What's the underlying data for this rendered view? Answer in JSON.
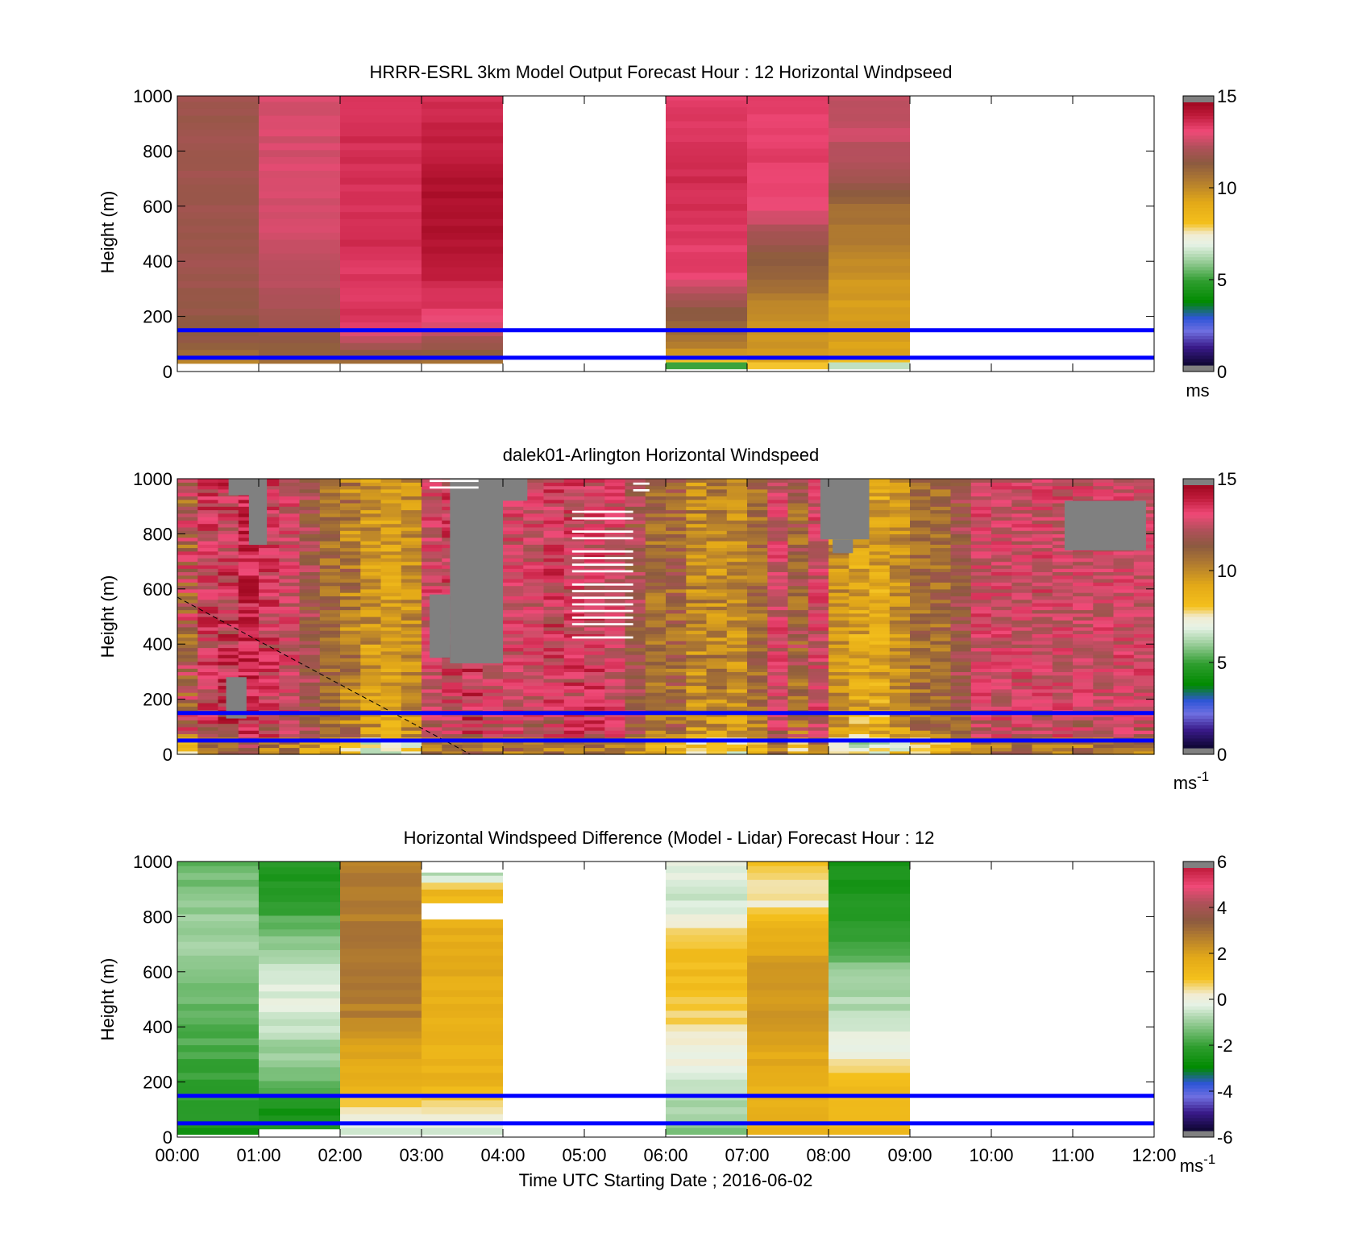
{
  "chart_data": [
    {
      "type": "heatmap",
      "title": "HRRR-ESRL 3km Model Output   Forecast Hour : 12 Horizontal Windpseed",
      "ylabel": "Height (m)",
      "xlabel": "",
      "x_range_hours": [
        0,
        12
      ],
      "ylim": [
        0,
        1000
      ],
      "yticks": [
        0,
        200,
        400,
        600,
        800,
        1000
      ],
      "colorbar": {
        "min": 0,
        "max": 15,
        "ticks": [
          0,
          5,
          10,
          15
        ],
        "unit": "ms",
        "unit_sup": "",
        "palette": "speed"
      },
      "blue_lines_m": [
        150,
        50
      ],
      "columns": [
        {
          "start": 0,
          "end": 1,
          "top": 1000,
          "bottom": 30,
          "profile": [
            [
              0,
              9.8
            ],
            [
              30,
              10.0
            ],
            [
              60,
              11.0
            ],
            [
              100,
              11.5
            ],
            [
              200,
              11.8
            ],
            [
              400,
              12.0
            ],
            [
              600,
              12.0
            ],
            [
              1000,
              12.0
            ]
          ]
        },
        {
          "start": 1,
          "end": 2,
          "top": 1000,
          "bottom": 30,
          "profile": [
            [
              0,
              9.8
            ],
            [
              30,
              10.5
            ],
            [
              60,
              11.2
            ],
            [
              150,
              11.8
            ],
            [
              250,
              12.3
            ],
            [
              400,
              12.7
            ],
            [
              600,
              13.0
            ],
            [
              1000,
              13.0
            ]
          ]
        },
        {
          "start": 2,
          "end": 3,
          "top": 1000,
          "bottom": 30,
          "profile": [
            [
              0,
              9.8
            ],
            [
              30,
              10.5
            ],
            [
              60,
              11.5
            ],
            [
              180,
              13.8
            ],
            [
              300,
              13.7
            ],
            [
              500,
              13.9
            ],
            [
              800,
              13.9
            ],
            [
              1000,
              13.9
            ]
          ]
        },
        {
          "start": 3,
          "end": 4,
          "top": 1000,
          "bottom": 30,
          "profile": [
            [
              0,
              9.8
            ],
            [
              30,
              10.5
            ],
            [
              60,
              11.2
            ],
            [
              200,
              13.5
            ],
            [
              300,
              14.0
            ],
            [
              500,
              14.7
            ],
            [
              700,
              14.6
            ],
            [
              900,
              14.0
            ],
            [
              1000,
              13.8
            ]
          ]
        },
        {
          "start": 6,
          "end": 7,
          "top": 1000,
          "bottom": 10,
          "profile": [
            [
              0,
              3.5
            ],
            [
              30,
              5.5
            ],
            [
              60,
              9.8
            ],
            [
              150,
              11.0
            ],
            [
              250,
              12.0
            ],
            [
              350,
              13.5
            ],
            [
              450,
              13.6
            ],
            [
              700,
              14.0
            ],
            [
              1000,
              13.5
            ]
          ]
        },
        {
          "start": 7,
          "end": 8,
          "top": 1000,
          "bottom": 10,
          "profile": [
            [
              0,
              6.0
            ],
            [
              30,
              8.5
            ],
            [
              60,
              9.8
            ],
            [
              200,
              10.0
            ],
            [
              300,
              10.8
            ],
            [
              450,
              11.8
            ],
            [
              600,
              13.3
            ],
            [
              800,
              13.6
            ],
            [
              1000,
              13.5
            ]
          ]
        },
        {
          "start": 8,
          "end": 9,
          "top": 1000,
          "bottom": 10,
          "profile": [
            [
              0,
              5.5
            ],
            [
              30,
              6.5
            ],
            [
              60,
              9.5
            ],
            [
              300,
              9.7
            ],
            [
              400,
              10.2
            ],
            [
              600,
              11.0
            ],
            [
              700,
              12.0
            ],
            [
              850,
              12.8
            ],
            [
              1000,
              12.7
            ]
          ]
        }
      ]
    },
    {
      "type": "heatmap",
      "title": "dalek01-Arlington  Horizontal Windspeed",
      "ylabel": "Height (m)",
      "xlabel": "",
      "x_range_hours": [
        0,
        12
      ],
      "ylim": [
        0,
        1000
      ],
      "yticks": [
        0,
        200,
        400,
        600,
        800,
        1000
      ],
      "colorbar": {
        "min": 0,
        "max": 15,
        "ticks": [
          0,
          5,
          10,
          15
        ],
        "unit": "ms",
        "unit_sup": "-1",
        "palette": "speed"
      },
      "blue_lines_m": [
        150,
        50
      ],
      "mixing_layer_line": {
        "from": [
          0,
          570
        ],
        "to": [
          3.6,
          0
        ]
      },
      "scans_per_hour": 4,
      "scan_tops_m": [
        1000,
        1000,
        1000,
        1000,
        1000,
        1000,
        1000,
        1000,
        1000,
        1000,
        1000,
        1000,
        1000,
        1000,
        1000,
        1000,
        1000,
        1000,
        1000,
        1000,
        1000,
        1000,
        1000,
        1000,
        1000,
        1000,
        1000,
        1000,
        1000,
        1000,
        1000,
        1000,
        1000,
        1000,
        1000,
        1000,
        1000,
        1000,
        1000,
        1000,
        1000,
        1000,
        1000,
        1000,
        1000,
        1000,
        1000,
        1000
      ],
      "scan_ranges_ms": [
        [
          10,
          14
        ],
        [
          12,
          14.5
        ],
        [
          12,
          15
        ],
        [
          13,
          15
        ],
        [
          12,
          14.5
        ],
        [
          12,
          14
        ],
        [
          11,
          13
        ],
        [
          10,
          12
        ],
        [
          9,
          12
        ],
        [
          8.5,
          11
        ],
        [
          8.5,
          10.5
        ],
        [
          9,
          11
        ],
        [
          12,
          14
        ],
        [
          12,
          14.5
        ],
        [
          12,
          15
        ],
        [
          12,
          14
        ],
        [
          12,
          14
        ],
        [
          12,
          14
        ],
        [
          12,
          14.5
        ],
        [
          12,
          14.5
        ],
        [
          12,
          14.5
        ],
        [
          12,
          14
        ],
        [
          11,
          13
        ],
        [
          10,
          12
        ],
        [
          10,
          12.5
        ],
        [
          9,
          11.5
        ],
        [
          9,
          11.5
        ],
        [
          9,
          11
        ],
        [
          10,
          12
        ],
        [
          12,
          14
        ],
        [
          10,
          13
        ],
        [
          12,
          14
        ],
        [
          9,
          11
        ],
        [
          8,
          10.5
        ],
        [
          8,
          10.5
        ],
        [
          9,
          11
        ],
        [
          10,
          12
        ],
        [
          10,
          12
        ],
        [
          11,
          13
        ],
        [
          12,
          14
        ],
        [
          12,
          14
        ],
        [
          12,
          14
        ],
        [
          12,
          14
        ],
        [
          12,
          14
        ],
        [
          12,
          14
        ],
        [
          12,
          14
        ],
        [
          12,
          14
        ],
        [
          12,
          14
        ]
      ],
      "missing_segments": [
        {
          "start": 0.63,
          "end": 0.97,
          "from_m": 940,
          "to_m": 1000
        },
        {
          "start": 0.88,
          "end": 1.1,
          "from_m": 760,
          "to_m": 1000
        },
        {
          "start": 0.6,
          "end": 0.85,
          "from_m": 130,
          "to_m": 280
        },
        {
          "start": 3.35,
          "end": 4.0,
          "from_m": 330,
          "to_m": 1000
        },
        {
          "start": 3.1,
          "end": 3.35,
          "from_m": 350,
          "to_m": 580
        },
        {
          "start": 4.0,
          "end": 4.3,
          "from_m": 920,
          "to_m": 1000
        },
        {
          "start": 7.9,
          "end": 8.5,
          "from_m": 780,
          "to_m": 1000
        },
        {
          "start": 8.05,
          "end": 8.3,
          "from_m": 730,
          "to_m": 780
        },
        {
          "start": 10.9,
          "end": 11.9,
          "from_m": 740,
          "to_m": 920
        }
      ],
      "white_gaps": [
        {
          "start": 3.1,
          "end": 3.7,
          "from_m": 940,
          "to_m": 1000
        },
        {
          "start": 4.85,
          "end": 5.6,
          "from_m": 420,
          "to_m": 930
        },
        {
          "start": 5.6,
          "end": 5.8,
          "from_m": 930,
          "to_m": 1000
        }
      ]
    },
    {
      "type": "heatmap",
      "title": "Horizontal Windspeed Difference (Model - Lidar) Forecast Hour : 12",
      "ylabel": "Height (m)",
      "xlabel": "Time UTC  Starting Date ; 2016-06-02",
      "x_range_hours": [
        0,
        12
      ],
      "xticks": [
        "00:00",
        "01:00",
        "02:00",
        "03:00",
        "04:00",
        "05:00",
        "06:00",
        "07:00",
        "08:00",
        "09:00",
        "10:00",
        "11:00",
        "12:00"
      ],
      "ylim": [
        0,
        1000
      ],
      "yticks": [
        0,
        200,
        400,
        600,
        800,
        1000
      ],
      "colorbar": {
        "min": -6,
        "max": 6,
        "ticks": [
          -6,
          -4,
          -2,
          0,
          2,
          4,
          6
        ],
        "unit": "ms",
        "unit_sup": "-1",
        "palette": "diff"
      },
      "blue_lines_m": [
        150,
        50
      ],
      "columns": [
        {
          "start": 0,
          "end": 1,
          "top": 1000,
          "bottom": 10,
          "profile": [
            [
              0,
              -2.6
            ],
            [
              100,
              -2.3
            ],
            [
              300,
              -2.0
            ],
            [
              500,
              -1.5
            ],
            [
              700,
              -0.9
            ],
            [
              900,
              -1.3
            ],
            [
              1000,
              -1.6
            ]
          ]
        },
        {
          "start": 1,
          "end": 2,
          "top": 1000,
          "bottom": 30,
          "profile": [
            [
              0,
              -2.7
            ],
            [
              100,
              -2.6
            ],
            [
              250,
              -1.3
            ],
            [
              400,
              -0.5
            ],
            [
              550,
              -0.2
            ],
            [
              700,
              -1.2
            ],
            [
              850,
              -2.2
            ],
            [
              1000,
              -2.5
            ]
          ]
        },
        {
          "start": 2,
          "end": 3,
          "top": 1000,
          "bottom": 10,
          "profile": [
            [
              0,
              -0.5
            ],
            [
              100,
              0.6
            ],
            [
              200,
              1.5
            ],
            [
              300,
              2.0
            ],
            [
              450,
              2.8
            ],
            [
              600,
              3.0
            ],
            [
              800,
              2.9
            ],
            [
              1000,
              2.9
            ]
          ]
        },
        {
          "start": 3,
          "end": 4,
          "top": 790,
          "bottom": 10,
          "profile": [
            [
              0,
              -0.5
            ],
            [
              100,
              0.6
            ],
            [
              200,
              1.5
            ],
            [
              400,
              1.6
            ],
            [
              600,
              1.8
            ],
            [
              790,
              1.7
            ]
          ]
        },
        {
          "start": 3,
          "end": 4,
          "top": 960,
          "bottom": 850,
          "profile": [
            [
              850,
              1.4
            ],
            [
              900,
              1.3
            ],
            [
              960,
              -1.0
            ]
          ]
        },
        {
          "start": 6,
          "end": 7,
          "top": 1000,
          "bottom": 10,
          "profile": [
            [
              0,
              -1.8
            ],
            [
              100,
              -0.8
            ],
            [
              250,
              -0.2
            ],
            [
              400,
              0.5
            ],
            [
              550,
              1.2
            ],
            [
              700,
              1.0
            ],
            [
              850,
              -0.5
            ],
            [
              1000,
              -0.1
            ]
          ]
        },
        {
          "start": 7,
          "end": 8,
          "top": 1000,
          "bottom": 10,
          "profile": [
            [
              0,
              1.6
            ],
            [
              200,
              1.6
            ],
            [
              400,
              2.2
            ],
            [
              600,
              2.3
            ],
            [
              750,
              1.6
            ],
            [
              850,
              0.2
            ],
            [
              950,
              0.8
            ],
            [
              1000,
              1.2
            ]
          ]
        },
        {
          "start": 8,
          "end": 9,
          "top": 1000,
          "bottom": 10,
          "profile": [
            [
              0,
              1.6
            ],
            [
              200,
              1.0
            ],
            [
              300,
              0.1
            ],
            [
              450,
              -0.6
            ],
            [
              600,
              -1.2
            ],
            [
              750,
              -2.3
            ],
            [
              1000,
              -2.6
            ]
          ]
        }
      ]
    }
  ]
}
